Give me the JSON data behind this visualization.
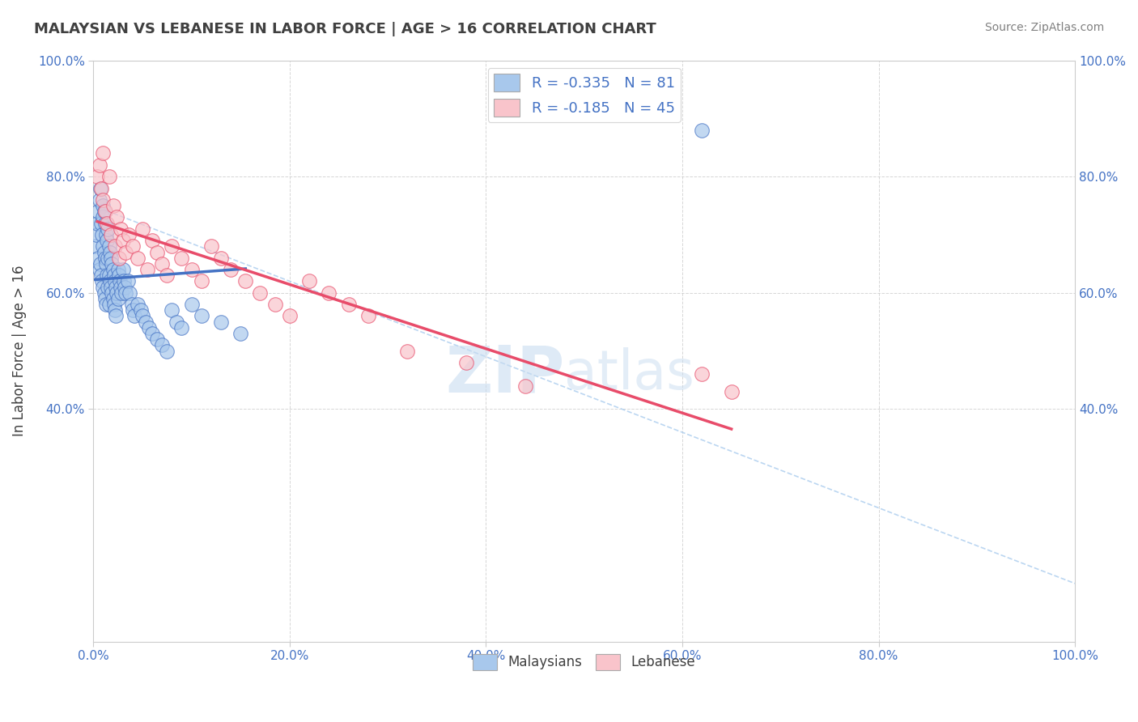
{
  "title": "MALAYSIAN VS LEBANESE IN LABOR FORCE | AGE > 16 CORRELATION CHART",
  "source": "Source: ZipAtlas.com",
  "ylabel": "In Labor Force | Age > 16",
  "xlim": [
    0.0,
    1.0
  ],
  "ylim": [
    0.0,
    1.0
  ],
  "legend_label1": "Malaysians",
  "legend_label2": "Lebanese",
  "R_malay": -0.335,
  "N_malay": 81,
  "R_leb": -0.185,
  "N_leb": 45,
  "color_malay": "#A8C8EC",
  "color_leb": "#F9C4CB",
  "color_malay_line": "#4472C4",
  "color_leb_line": "#E84C6A",
  "color_malay_legend": "#A8C8EC",
  "color_leb_legend": "#F9C4CB",
  "watermark_zip": "ZIP",
  "watermark_atlas": "atlas",
  "background_color": "#FFFFFF",
  "grid_color": "#CCCCCC",
  "title_color": "#404040",
  "source_color": "#808080",
  "tick_label_color": "#4472C4",
  "malay_x": [
    0.002,
    0.003,
    0.004,
    0.005,
    0.005,
    0.006,
    0.006,
    0.007,
    0.007,
    0.008,
    0.008,
    0.009,
    0.009,
    0.01,
    0.01,
    0.01,
    0.01,
    0.011,
    0.011,
    0.011,
    0.012,
    0.012,
    0.012,
    0.013,
    0.013,
    0.013,
    0.014,
    0.014,
    0.015,
    0.015,
    0.015,
    0.016,
    0.016,
    0.016,
    0.017,
    0.017,
    0.018,
    0.018,
    0.019,
    0.019,
    0.02,
    0.02,
    0.021,
    0.021,
    0.022,
    0.022,
    0.023,
    0.023,
    0.024,
    0.025,
    0.025,
    0.026,
    0.027,
    0.028,
    0.029,
    0.03,
    0.031,
    0.032,
    0.033,
    0.035,
    0.037,
    0.039,
    0.04,
    0.042,
    0.045,
    0.048,
    0.05,
    0.053,
    0.057,
    0.06,
    0.065,
    0.07,
    0.075,
    0.08,
    0.085,
    0.09,
    0.1,
    0.11,
    0.13,
    0.15,
    0.62
  ],
  "malay_y": [
    0.68,
    0.7,
    0.72,
    0.74,
    0.66,
    0.76,
    0.64,
    0.78,
    0.65,
    0.72,
    0.63,
    0.7,
    0.62,
    0.75,
    0.73,
    0.68,
    0.61,
    0.74,
    0.67,
    0.6,
    0.72,
    0.66,
    0.59,
    0.7,
    0.65,
    0.58,
    0.69,
    0.63,
    0.71,
    0.66,
    0.61,
    0.68,
    0.63,
    0.58,
    0.67,
    0.62,
    0.66,
    0.61,
    0.65,
    0.6,
    0.64,
    0.59,
    0.63,
    0.58,
    0.62,
    0.57,
    0.61,
    0.56,
    0.6,
    0.64,
    0.59,
    0.63,
    0.62,
    0.61,
    0.6,
    0.64,
    0.62,
    0.61,
    0.6,
    0.62,
    0.6,
    0.58,
    0.57,
    0.56,
    0.58,
    0.57,
    0.56,
    0.55,
    0.54,
    0.53,
    0.52,
    0.51,
    0.5,
    0.57,
    0.55,
    0.54,
    0.58,
    0.56,
    0.55,
    0.53,
    0.88
  ],
  "leb_x": [
    0.004,
    0.006,
    0.008,
    0.01,
    0.01,
    0.012,
    0.014,
    0.016,
    0.018,
    0.02,
    0.022,
    0.024,
    0.026,
    0.028,
    0.03,
    0.033,
    0.036,
    0.04,
    0.045,
    0.05,
    0.055,
    0.06,
    0.065,
    0.07,
    0.075,
    0.08,
    0.09,
    0.1,
    0.11,
    0.12,
    0.13,
    0.14,
    0.155,
    0.17,
    0.185,
    0.2,
    0.22,
    0.24,
    0.26,
    0.28,
    0.32,
    0.38,
    0.44,
    0.62,
    0.65
  ],
  "leb_y": [
    0.8,
    0.82,
    0.78,
    0.76,
    0.84,
    0.74,
    0.72,
    0.8,
    0.7,
    0.75,
    0.68,
    0.73,
    0.66,
    0.71,
    0.69,
    0.67,
    0.7,
    0.68,
    0.66,
    0.71,
    0.64,
    0.69,
    0.67,
    0.65,
    0.63,
    0.68,
    0.66,
    0.64,
    0.62,
    0.68,
    0.66,
    0.64,
    0.62,
    0.6,
    0.58,
    0.56,
    0.62,
    0.6,
    0.58,
    0.56,
    0.5,
    0.48,
    0.44,
    0.46,
    0.43
  ]
}
